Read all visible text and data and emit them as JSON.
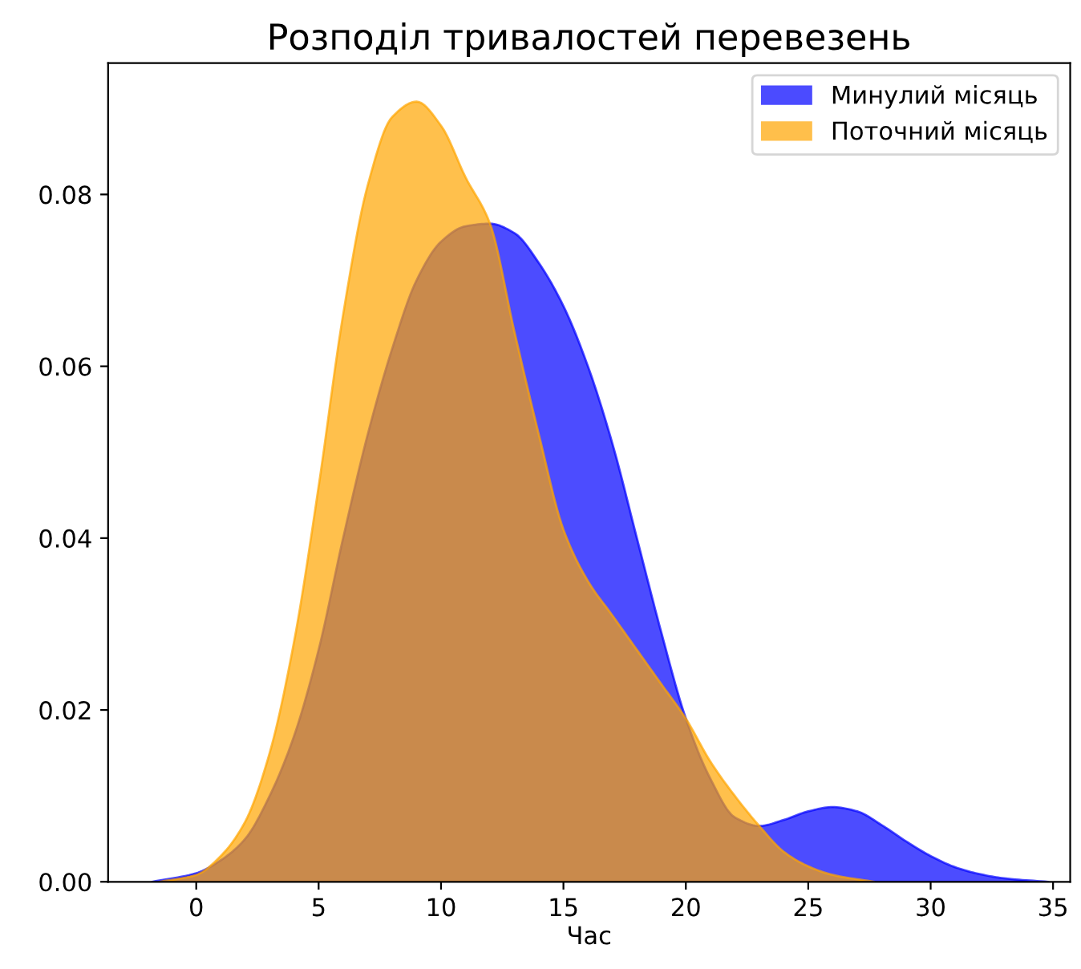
{
  "chart_data": {
    "type": "area",
    "title": "Розподіл тривалостей перевезень",
    "xlabel": "Час",
    "xlim": [
      -3.6,
      35.7
    ],
    "ylim": [
      0,
      0.0953
    ],
    "xticks": [
      0,
      5,
      10,
      15,
      20,
      25,
      30,
      35
    ],
    "yticks": [
      {
        "value": 0,
        "label": "0.00"
      },
      {
        "value": 0.02,
        "label": "0.02"
      },
      {
        "value": 0.04,
        "label": "0.04"
      },
      {
        "value": 0.06,
        "label": "0.06"
      },
      {
        "value": 0.08,
        "label": "0.08"
      }
    ],
    "grid": false,
    "legend": "top right",
    "series": [
      {
        "name": "Минулий місяць",
        "color": "#0000ff",
        "x": [
          -1.8,
          0,
          1,
          2,
          3,
          4,
          5,
          6,
          7,
          8,
          9,
          10,
          11,
          12,
          13,
          14,
          15,
          16,
          17,
          18,
          19,
          20,
          21,
          22,
          23,
          24,
          25,
          26,
          27,
          28,
          29,
          30,
          31,
          32,
          33,
          34.8
        ],
        "values": [
          0,
          0.001,
          0.0025,
          0.005,
          0.01,
          0.017,
          0.027,
          0.04,
          0.052,
          0.062,
          0.07,
          0.0745,
          0.0763,
          0.0766,
          0.0755,
          0.072,
          0.067,
          0.06,
          0.051,
          0.04,
          0.029,
          0.019,
          0.012,
          0.0075,
          0.0065,
          0.0072,
          0.0082,
          0.0087,
          0.0082,
          0.0066,
          0.0047,
          0.003,
          0.0017,
          0.0009,
          0.0004,
          0
        ]
      },
      {
        "name": "Поточний місяць",
        "color": "#ffa500",
        "x": [
          -1.5,
          0,
          1,
          2,
          3,
          4,
          5,
          6,
          7,
          8,
          9,
          10,
          11,
          12,
          13,
          14,
          15,
          16,
          17,
          18,
          19,
          20,
          21,
          22,
          23,
          24,
          25,
          26,
          27.7
        ],
        "values": [
          0,
          0.0008,
          0.003,
          0.007,
          0.015,
          0.028,
          0.046,
          0.066,
          0.081,
          0.089,
          0.0908,
          0.088,
          0.082,
          0.0766,
          0.064,
          0.052,
          0.041,
          0.035,
          0.031,
          0.027,
          0.023,
          0.019,
          0.014,
          0.01,
          0.0065,
          0.0035,
          0.0018,
          0.0008,
          0
        ]
      }
    ]
  }
}
